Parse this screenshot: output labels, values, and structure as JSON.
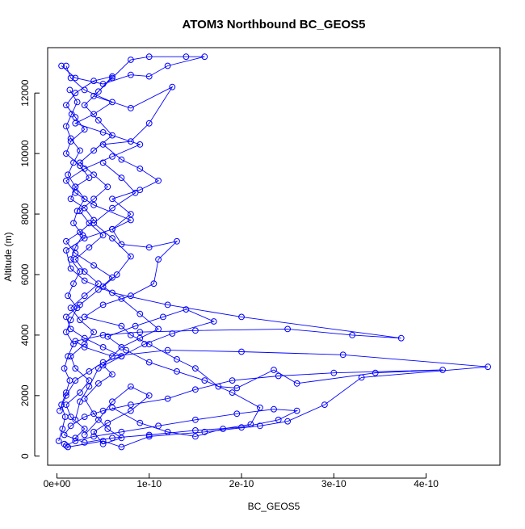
{
  "chart_data": {
    "type": "scatter",
    "title": "ATOM3 Northbound BC_GEOS5",
    "xlabel": "BC_GEOS5",
    "ylabel": "Altitude (m)",
    "xlim": [
      -1e-11,
      4.8e-10
    ],
    "ylim": [
      -300,
      13500
    ],
    "x_ticks": [
      0,
      1e-10,
      2e-10,
      3e-10,
      4e-10
    ],
    "x_tick_labels": [
      "0e+00",
      "1e-10",
      "2e-10",
      "3e-10",
      "4e-10"
    ],
    "y_ticks": [
      0,
      2000,
      4000,
      6000,
      8000,
      10000,
      12000
    ],
    "y_tick_labels": [
      "0",
      "2000",
      "4000",
      "6000",
      "8000",
      "10000",
      "12000"
    ],
    "grid": false,
    "legend": "none",
    "color": "#0000ff",
    "marker": "open-circle",
    "connected": true,
    "series": [
      {
        "points": [
          [
            8e-12,
            400
          ],
          [
            1.2e-11,
            300
          ],
          [
            5e-11,
            500
          ],
          [
            7e-11,
            300
          ],
          [
            1e-10,
            650
          ],
          [
            1.6e-10,
            800
          ],
          [
            2.2e-10,
            1000
          ],
          [
            2.5e-10,
            1150
          ],
          [
            2.9e-10,
            1700
          ],
          [
            3.3e-10,
            2600
          ],
          [
            4.67e-10,
            2950
          ],
          [
            3.1e-10,
            3350
          ],
          [
            2e-10,
            3450
          ],
          [
            1.2e-10,
            3500
          ],
          [
            6e-11,
            3300
          ],
          [
            3e-11,
            3600
          ],
          [
            2e-11,
            3800
          ],
          [
            5e-11,
            4000
          ],
          [
            9e-11,
            4100
          ],
          [
            1.5e-10,
            4150
          ],
          [
            2.5e-10,
            4200
          ],
          [
            3.2e-10,
            4000
          ],
          [
            3.73e-10,
            3900
          ],
          [
            2e-10,
            4600
          ],
          [
            1.2e-10,
            5000
          ],
          [
            6e-11,
            5400
          ],
          [
            3e-11,
            5800
          ],
          [
            1.5e-11,
            6200
          ],
          [
            1e-11,
            6800
          ],
          [
            3e-11,
            7200
          ],
          [
            6e-11,
            7500
          ],
          [
            8e-11,
            7800
          ],
          [
            4e-11,
            8300
          ],
          [
            2e-11,
            8700
          ],
          [
            1e-11,
            9100
          ],
          [
            3e-11,
            9500
          ],
          [
            6e-11,
            9900
          ],
          [
            9e-11,
            10300
          ],
          [
            5e-11,
            10700
          ],
          [
            2e-11,
            11000
          ],
          [
            4e-11,
            11300
          ],
          [
            6e-11,
            11700
          ],
          [
            3e-11,
            12100
          ],
          [
            1.5e-11,
            12500
          ],
          [
            1e-11,
            12900
          ]
        ]
      },
      {
        "points": [
          [
            5e-12,
            12900
          ],
          [
            2e-11,
            12500
          ],
          [
            5e-11,
            12300
          ],
          [
            8e-11,
            12600
          ],
          [
            1e-10,
            12550
          ],
          [
            1.2e-10,
            12900
          ],
          [
            1.6e-10,
            13200
          ],
          [
            1.4e-10,
            13200
          ],
          [
            1e-10,
            13200
          ],
          [
            8e-11,
            13100
          ],
          [
            6e-11,
            12500
          ],
          [
            4e-11,
            11900
          ],
          [
            8e-11,
            11500
          ],
          [
            1.25e-10,
            12200
          ],
          [
            1e-10,
            11000
          ],
          [
            8e-11,
            10400
          ],
          [
            5e-11,
            10300
          ],
          [
            7e-11,
            9800
          ],
          [
            9e-11,
            9500
          ],
          [
            1.1e-10,
            9100
          ],
          [
            9e-11,
            8800
          ],
          [
            6e-11,
            8500
          ],
          [
            8e-11,
            8000
          ],
          [
            6e-11,
            7500
          ],
          [
            7e-11,
            7000
          ],
          [
            1e-10,
            6900
          ],
          [
            1.3e-10,
            7100
          ],
          [
            1.1e-10,
            6500
          ],
          [
            1.05e-10,
            5700
          ],
          [
            8e-11,
            5300
          ],
          [
            5e-11,
            5000
          ],
          [
            3e-11,
            4600
          ],
          [
            7e-11,
            4300
          ],
          [
            8e-11,
            4000
          ],
          [
            1e-10,
            3700
          ],
          [
            1.3e-10,
            3200
          ],
          [
            1.5e-10,
            2900
          ],
          [
            1.75e-10,
            2300
          ],
          [
            1.95e-10,
            2250
          ],
          [
            2.35e-10,
            2850
          ],
          [
            2.6e-10,
            2400
          ],
          [
            3.45e-10,
            2750
          ],
          [
            4.18e-10,
            2850
          ],
          [
            3e-10,
            2750
          ],
          [
            2.4e-10,
            2650
          ],
          [
            1.9e-10,
            2500
          ],
          [
            1.5e-10,
            2200
          ],
          [
            1.2e-10,
            1900
          ],
          [
            8e-11,
            1700
          ],
          [
            5e-11,
            1500
          ],
          [
            3e-11,
            1300
          ],
          [
            1.5e-11,
            1000
          ],
          [
            8e-12,
            700
          ],
          [
            3e-11,
            450
          ],
          [
            6e-11,
            600
          ],
          [
            1e-10,
            700
          ],
          [
            1.5e-10,
            850
          ],
          [
            2e-10,
            950
          ],
          [
            2.4e-10,
            1200
          ],
          [
            2.6e-10,
            1500
          ],
          [
            2.35e-10,
            1550
          ],
          [
            1.95e-10,
            1400
          ],
          [
            1.5e-10,
            1200
          ],
          [
            1.1e-10,
            1000
          ],
          [
            7e-11,
            800
          ],
          [
            4e-11,
            650
          ],
          [
            2e-11,
            500
          ],
          [
            1e-11,
            350
          ]
        ]
      },
      {
        "points": [
          [
            3e-12,
            1500
          ],
          [
            1e-11,
            2000
          ],
          [
            2e-11,
            2500
          ],
          [
            3.5e-11,
            2800
          ],
          [
            5e-11,
            3100
          ],
          [
            7e-11,
            3300
          ],
          [
            5e-11,
            3600
          ],
          [
            3e-11,
            3900
          ],
          [
            1.5e-11,
            4200
          ],
          [
            1e-11,
            4600
          ],
          [
            2.5e-11,
            5000
          ],
          [
            4.5e-11,
            5500
          ],
          [
            6e-11,
            5900
          ],
          [
            4e-11,
            6300
          ],
          [
            2e-11,
            6700
          ],
          [
            1e-11,
            7100
          ],
          [
            2.5e-11,
            7400
          ],
          [
            4e-11,
            7800
          ],
          [
            3e-11,
            8200
          ],
          [
            1.5e-11,
            8500
          ],
          [
            2e-11,
            8900
          ],
          [
            3.5e-11,
            9200
          ],
          [
            2.5e-11,
            9600
          ],
          [
            1e-11,
            10000
          ],
          [
            1.5e-11,
            10400
          ],
          [
            3e-11,
            10800
          ],
          [
            2e-11,
            11200
          ],
          [
            1e-11,
            11600
          ],
          [
            2e-11,
            12000
          ],
          [
            4e-11,
            12400
          ],
          [
            6e-11,
            12550
          ],
          [
            4.5e-11,
            12050
          ],
          [
            3e-11,
            11600
          ],
          [
            4.5e-11,
            11100
          ],
          [
            6e-11,
            10600
          ],
          [
            4e-11,
            10100
          ],
          [
            2.5e-11,
            9700
          ],
          [
            4e-11,
            9300
          ],
          [
            5.5e-11,
            8900
          ],
          [
            4e-11,
            8500
          ],
          [
            2.5e-11,
            8100
          ],
          [
            3.5e-11,
            7700
          ],
          [
            5e-11,
            7300
          ],
          [
            3.5e-11,
            6900
          ],
          [
            2e-11,
            6500
          ],
          [
            3e-11,
            6100
          ],
          [
            4.5e-11,
            5700
          ],
          [
            3e-11,
            5300
          ],
          [
            1.5e-11,
            4900
          ],
          [
            2.5e-11,
            4500
          ],
          [
            4e-11,
            4100
          ],
          [
            3e-11,
            3700
          ],
          [
            1.5e-11,
            3300
          ],
          [
            2e-11,
            2900
          ],
          [
            3.5e-11,
            2500
          ],
          [
            2.5e-11,
            2100
          ],
          [
            1e-11,
            1700
          ],
          [
            1.5e-11,
            1300
          ],
          [
            3e-11,
            900
          ],
          [
            2e-11,
            600
          ]
        ]
      },
      {
        "points": [
          [
            2e-12,
            500
          ],
          [
            6e-12,
            900
          ],
          [
            9e-12,
            1300
          ],
          [
            5e-12,
            1700
          ],
          [
            1e-11,
            2100
          ],
          [
            1.4e-11,
            2500
          ],
          [
            8e-12,
            2900
          ],
          [
            1.2e-11,
            3300
          ],
          [
            1.8e-11,
            3700
          ],
          [
            1e-11,
            4100
          ],
          [
            1.5e-11,
            4500
          ],
          [
            2.2e-11,
            4900
          ],
          [
            1.2e-11,
            5300
          ],
          [
            1.8e-11,
            5700
          ],
          [
            2.5e-11,
            6100
          ],
          [
            1.5e-11,
            6500
          ],
          [
            2e-11,
            6900
          ],
          [
            2.8e-11,
            7300
          ],
          [
            1.8e-11,
            7700
          ],
          [
            2.2e-11,
            8100
          ],
          [
            3e-11,
            8500
          ],
          [
            2e-11,
            8900
          ],
          [
            1.2e-11,
            9300
          ],
          [
            1.8e-11,
            9700
          ],
          [
            2.5e-11,
            10100
          ],
          [
            1.5e-11,
            10500
          ],
          [
            1e-11,
            10900
          ],
          [
            1.6e-11,
            11300
          ],
          [
            2.2e-11,
            11700
          ],
          [
            1.4e-11,
            12100
          ]
        ]
      },
      {
        "points": [
          [
            3e-11,
            700
          ],
          [
            4.5e-11,
            1200
          ],
          [
            6e-11,
            1800
          ],
          [
            8e-11,
            2300
          ],
          [
            1e-10,
            2000
          ],
          [
            8e-11,
            1500
          ],
          [
            5.5e-11,
            1100
          ],
          [
            4e-11,
            800
          ],
          [
            5e-11,
            400
          ],
          [
            7e-11,
            600
          ],
          [
            5.5e-11,
            900
          ],
          [
            4e-11,
            1400
          ],
          [
            3e-11,
            1900
          ],
          [
            4.5e-11,
            2400
          ],
          [
            6e-11,
            2700
          ],
          [
            5e-11,
            3000
          ],
          [
            7e-11,
            3600
          ],
          [
            9e-11,
            3900
          ],
          [
            1.1e-10,
            4200
          ],
          [
            9e-11,
            4700
          ],
          [
            7e-11,
            5200
          ],
          [
            5e-11,
            5600
          ],
          [
            6.5e-11,
            6000
          ],
          [
            8e-11,
            6600
          ],
          [
            6e-11,
            7200
          ],
          [
            4e-11,
            7700
          ],
          [
            6e-11,
            8200
          ],
          [
            8.5e-11,
            8700
          ],
          [
            7e-11,
            9200
          ],
          [
            5e-11,
            9700
          ]
        ]
      },
      {
        "points": [
          [
            6e-11,
            1600
          ],
          [
            9e-11,
            1100
          ],
          [
            1.2e-10,
            800
          ],
          [
            1.5e-10,
            650
          ],
          [
            1.8e-10,
            900
          ],
          [
            2.1e-10,
            1050
          ],
          [
            2.2e-10,
            1600
          ],
          [
            1.9e-10,
            2100
          ],
          [
            1.6e-10,
            2500
          ],
          [
            1.3e-10,
            2800
          ],
          [
            1e-10,
            3100
          ],
          [
            7.5e-11,
            3500
          ],
          [
            5.5e-11,
            3950
          ],
          [
            8.5e-11,
            4300
          ],
          [
            1.15e-10,
            4600
          ],
          [
            1.4e-10,
            4850
          ],
          [
            1.7e-10,
            4450
          ],
          [
            1.25e-10,
            4050
          ],
          [
            9.5e-11,
            3700
          ],
          [
            7e-11,
            3300
          ],
          [
            4.5e-11,
            2900
          ],
          [
            3.5e-11,
            2300
          ],
          [
            2.5e-11,
            1800
          ],
          [
            2e-11,
            1200
          ]
        ]
      }
    ]
  }
}
